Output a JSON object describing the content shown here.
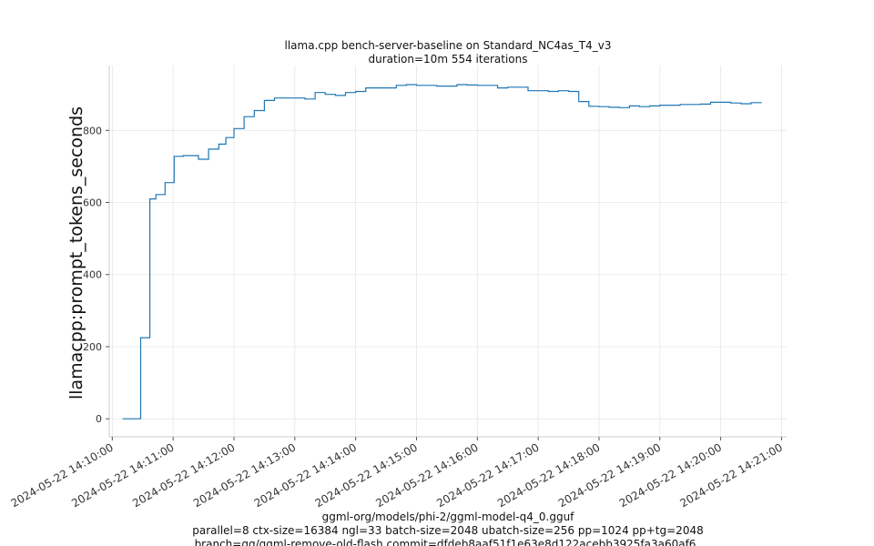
{
  "chart_data": {
    "type": "line",
    "title": "llama.cpp bench-server-baseline on Standard_NC4as_T4_v3",
    "subtitle": "duration=10m 554 iterations",
    "xlabel": "",
    "ylabel": "llamacpp:prompt_tokens_seconds",
    "xlim": [
      "2024-05-22 14:09:57",
      "2024-05-22 14:21:05"
    ],
    "ylim": [
      -50,
      980
    ],
    "grid": true,
    "x_ticks": [
      "2024-05-22 14:10:00",
      "2024-05-22 14:11:00",
      "2024-05-22 14:12:00",
      "2024-05-22 14:13:00",
      "2024-05-22 14:14:00",
      "2024-05-22 14:15:00",
      "2024-05-22 14:16:00",
      "2024-05-22 14:17:00",
      "2024-05-22 14:18:00",
      "2024-05-22 14:19:00",
      "2024-05-22 14:20:00",
      "2024-05-22 14:21:00"
    ],
    "y_ticks": [
      0,
      200,
      400,
      600,
      800
    ],
    "colors": {
      "series": "#1f77b4"
    },
    "series": [
      {
        "x": [
          "2024-05-22 14:10:10",
          "2024-05-22 14:10:28",
          "2024-05-22 14:10:37",
          "2024-05-22 14:10:43",
          "2024-05-22 14:10:52",
          "2024-05-22 14:11:01",
          "2024-05-22 14:11:10",
          "2024-05-22 14:11:25",
          "2024-05-22 14:11:35",
          "2024-05-22 14:11:45",
          "2024-05-22 14:11:52",
          "2024-05-22 14:12:00",
          "2024-05-22 14:12:10",
          "2024-05-22 14:12:20",
          "2024-05-22 14:12:30",
          "2024-05-22 14:12:40",
          "2024-05-22 14:12:53",
          "2024-05-22 14:13:10",
          "2024-05-22 14:13:20",
          "2024-05-22 14:13:30",
          "2024-05-22 14:13:40",
          "2024-05-22 14:13:50",
          "2024-05-22 14:14:00",
          "2024-05-22 14:14:10",
          "2024-05-22 14:14:20",
          "2024-05-22 14:14:40",
          "2024-05-22 14:14:50",
          "2024-05-22 14:15:00",
          "2024-05-22 14:15:20",
          "2024-05-22 14:15:40",
          "2024-05-22 14:15:50",
          "2024-05-22 14:16:00",
          "2024-05-22 14:16:20",
          "2024-05-22 14:16:30",
          "2024-05-22 14:16:50",
          "2024-05-22 14:17:10",
          "2024-05-22 14:17:20",
          "2024-05-22 14:17:30",
          "2024-05-22 14:17:40",
          "2024-05-22 14:17:50",
          "2024-05-22 14:18:00",
          "2024-05-22 14:18:10",
          "2024-05-22 14:18:20",
          "2024-05-22 14:18:30",
          "2024-05-22 14:18:40",
          "2024-05-22 14:18:50",
          "2024-05-22 14:19:00",
          "2024-05-22 14:19:20",
          "2024-05-22 14:19:40",
          "2024-05-22 14:19:50",
          "2024-05-22 14:20:10",
          "2024-05-22 14:20:20",
          "2024-05-22 14:20:30",
          "2024-05-22 14:20:40"
        ],
        "values": [
          0,
          225,
          610,
          622,
          655,
          728,
          730,
          720,
          748,
          762,
          780,
          805,
          838,
          855,
          883,
          890,
          890,
          887,
          905,
          900,
          897,
          905,
          908,
          918,
          918,
          925,
          927,
          925,
          923,
          927,
          926,
          925,
          918,
          920,
          910,
          908,
          910,
          908,
          880,
          867,
          866,
          864,
          863,
          868,
          866,
          868,
          870,
          872,
          873,
          878,
          876,
          874,
          877,
          878
        ]
      }
    ]
  },
  "footer": {
    "line1": "ggml-org/models/phi-2/ggml-model-q4_0.gguf",
    "line2": "parallel=8 ctx-size=16384 ngl=33 batch-size=2048 ubatch-size=256 pp=1024 pp+tg=2048",
    "line3": "branch=gg/ggml-remove-old-flash commit=dfdeb8aaf51f1e63e8d122acebb3925fa3a60af6"
  }
}
